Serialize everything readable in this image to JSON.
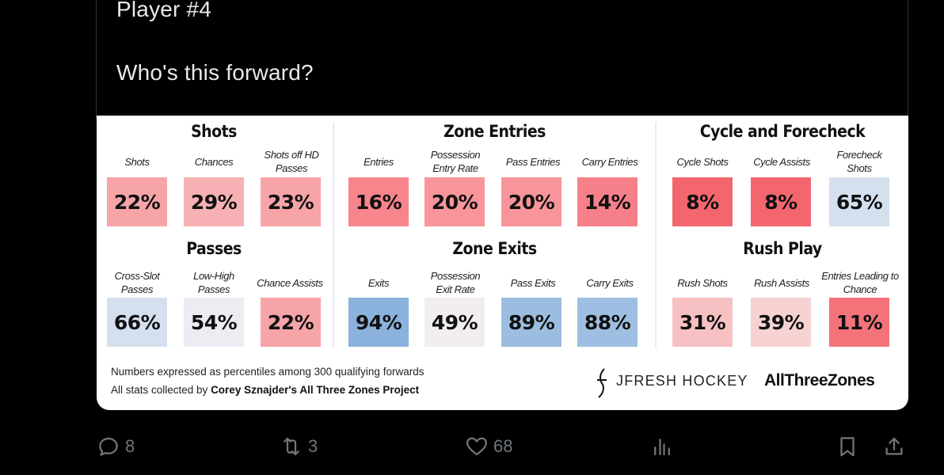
{
  "tweet": {
    "line1": "Player #4",
    "line2": "Who's this forward?"
  },
  "card": {
    "colors": {
      "red_strong": "#f4666e",
      "red_mid": "#f7858c",
      "red_soft": "#f7a4a8",
      "red_light": "#f7c5c7",
      "neutral": "#f3eeee",
      "blue_light": "#d5e0ef",
      "blue_mid": "#a7c3e2",
      "blue_strong": "#8ab2dc"
    },
    "groups": [
      {
        "id": "shots",
        "title": "Shots",
        "stats": [
          {
            "label": "Shots",
            "value": "22%",
            "color": "#f7a4a8"
          },
          {
            "label": "Chances",
            "value": "29%",
            "color": "#f7b1b4"
          },
          {
            "label": "Shots off HD Passes",
            "value": "23%",
            "color": "#f7a4a8"
          }
        ]
      },
      {
        "id": "zone-entries",
        "title": "Zone Entries",
        "stats": [
          {
            "label": "Entries",
            "value": "16%",
            "color": "#f7858c"
          },
          {
            "label": "Possession Entry Rate",
            "value": "20%",
            "color": "#f7959b"
          },
          {
            "label": "Pass Entries",
            "value": "20%",
            "color": "#f7959b"
          },
          {
            "label": "Carry Entries",
            "value": "14%",
            "color": "#f6808a"
          }
        ]
      },
      {
        "id": "cycle",
        "title": "Cycle and Forecheck",
        "stats": [
          {
            "label": "Cycle Shots",
            "value": "8%",
            "color": "#f4666e"
          },
          {
            "label": "Cycle Assists",
            "value": "8%",
            "color": "#f4666e"
          },
          {
            "label": "Forecheck Shots",
            "value": "65%",
            "color": "#d5e0ef"
          }
        ]
      },
      {
        "id": "passes",
        "title": "Passes",
        "stats": [
          {
            "label": "Cross-Slot Passes",
            "value": "66%",
            "color": "#d5e0ef"
          },
          {
            "label": "Low-High Passes",
            "value": "54%",
            "color": "#ebedf3"
          },
          {
            "label": "Chance Assists",
            "value": "22%",
            "color": "#f7a4a8"
          }
        ]
      },
      {
        "id": "zone-exits",
        "title": "Zone Exits",
        "stats": [
          {
            "label": "Exits",
            "value": "94%",
            "color": "#8ab2dc"
          },
          {
            "label": "Possession Exit Rate",
            "value": "49%",
            "color": "#f3eeee"
          },
          {
            "label": "Pass Exits",
            "value": "89%",
            "color": "#9bbde0"
          },
          {
            "label": "Carry Exits",
            "value": "88%",
            "color": "#9ebfe1"
          }
        ]
      },
      {
        "id": "rush",
        "title": "Rush Play",
        "stats": [
          {
            "label": "Rush Shots",
            "value": "31%",
            "color": "#f7c0c2"
          },
          {
            "label": "Rush Assists",
            "value": "39%",
            "color": "#f6d2d3"
          },
          {
            "label": "Entries Leading to Chance",
            "value": "11%",
            "color": "#f4737b"
          }
        ]
      }
    ],
    "footnote": {
      "line1": "Numbers expressed as percentiles among 300 qualifying forwards",
      "line2_prefix": "All stats collected by ",
      "line2_bold": "Corey Sznajder's All Three Zones Project"
    },
    "brands": {
      "jfresh": "JFRESH HOCKEY",
      "atz": "AllThreeZones"
    }
  },
  "actions": {
    "reply_count": "8",
    "retweet_count": "3",
    "like_count": "68"
  }
}
